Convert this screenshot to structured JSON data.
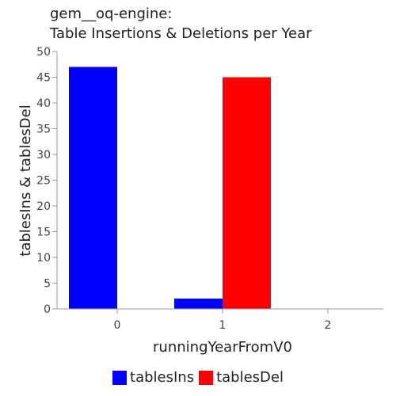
{
  "chart_data": {
    "type": "bar",
    "title_lines": [
      "gem__oq-engine:",
      "Table Insertions & Deletions per Year"
    ],
    "xlabel": "runningYearFromV0",
    "ylabel": "tablesIns & tablesDel",
    "categories": [
      "0",
      "1",
      "2"
    ],
    "series": [
      {
        "name": "tablesIns",
        "color": "#0000ff",
        "values": [
          47,
          2,
          0
        ]
      },
      {
        "name": "tablesDel",
        "color": "#ff0000",
        "values": [
          0,
          45,
          0
        ]
      }
    ],
    "ylim": [
      0,
      50
    ],
    "yticks": [
      0,
      5,
      10,
      15,
      20,
      25,
      30,
      35,
      40,
      45,
      50
    ],
    "grid": false,
    "legend_position": "bottom"
  }
}
